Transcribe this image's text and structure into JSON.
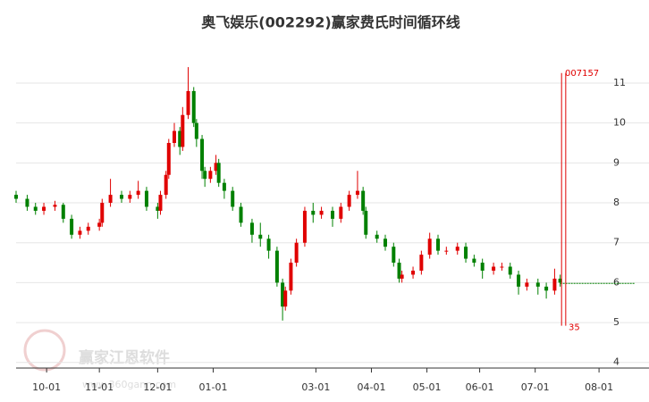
{
  "chart_data": {
    "type": "candlestick",
    "title": "奥飞娱乐(002292)赢家费氏时间循环线",
    "watermark": "赢家江恩软件",
    "watermark_url": "www.360gann.com",
    "up_color": "#e00000",
    "down_color": "#008000",
    "candles": [
      [
        0,
        8.2,
        8.1,
        8.3,
        8.0
      ],
      [
        4,
        8.1,
        7.9,
        8.2,
        7.8
      ],
      [
        7,
        7.9,
        7.8,
        8.0,
        7.7
      ],
      [
        10,
        7.8,
        7.9,
        8.0,
        7.7
      ],
      [
        14,
        7.9,
        7.95,
        8.05,
        7.8
      ],
      [
        17,
        7.95,
        7.6,
        8.0,
        7.5
      ],
      [
        20,
        7.6,
        7.2,
        7.7,
        7.1
      ],
      [
        23,
        7.2,
        7.3,
        7.4,
        7.1
      ],
      [
        26,
        7.3,
        7.4,
        7.5,
        7.2
      ],
      [
        30,
        7.4,
        7.5,
        7.6,
        7.3
      ],
      [
        31,
        7.5,
        8.0,
        8.1,
        7.4
      ],
      [
        34,
        8.0,
        8.2,
        8.6,
        7.9
      ],
      [
        38,
        8.2,
        8.1,
        8.3,
        8.0
      ],
      [
        41,
        8.1,
        8.2,
        8.3,
        8.0
      ],
      [
        44,
        8.2,
        8.3,
        8.55,
        8.1
      ],
      [
        47,
        8.3,
        7.9,
        8.4,
        7.8
      ],
      [
        51,
        7.9,
        7.8,
        8.0,
        7.6
      ],
      [
        52,
        7.8,
        8.2,
        8.3,
        7.7
      ],
      [
        54,
        8.2,
        8.7,
        8.8,
        8.1
      ],
      [
        55,
        8.7,
        9.5,
        9.6,
        8.6
      ],
      [
        57,
        9.5,
        9.8,
        10.0,
        9.4
      ],
      [
        59,
        9.8,
        9.4,
        9.9,
        9.2
      ],
      [
        60,
        9.4,
        10.2,
        10.4,
        9.3
      ],
      [
        62,
        10.2,
        10.8,
        11.4,
        10.1
      ],
      [
        64,
        10.8,
        10.0,
        10.9,
        9.9
      ],
      [
        65,
        10.0,
        9.6,
        10.1,
        9.4
      ],
      [
        67,
        9.6,
        8.8,
        9.7,
        8.6
      ],
      [
        68,
        8.8,
        8.6,
        8.9,
        8.4
      ],
      [
        70,
        8.6,
        8.8,
        8.9,
        8.5
      ],
      [
        72,
        8.8,
        9.0,
        9.2,
        8.7
      ],
      [
        73,
        9.0,
        8.5,
        9.1,
        8.4
      ],
      [
        75,
        8.5,
        8.3,
        8.6,
        8.1
      ],
      [
        78,
        8.3,
        7.9,
        8.4,
        7.8
      ],
      [
        81,
        7.9,
        7.5,
        8.0,
        7.4
      ],
      [
        85,
        7.5,
        7.2,
        7.6,
        7.0
      ],
      [
        88,
        7.2,
        7.1,
        7.5,
        6.9
      ],
      [
        91,
        7.1,
        6.8,
        7.2,
        6.6
      ],
      [
        94,
        6.8,
        6.0,
        6.9,
        5.9
      ],
      [
        96,
        6.0,
        5.4,
        6.1,
        5.05
      ],
      [
        97,
        5.4,
        5.8,
        5.9,
        5.3
      ],
      [
        99,
        5.8,
        6.5,
        6.6,
        5.7
      ],
      [
        101,
        6.5,
        7.0,
        7.1,
        6.4
      ],
      [
        104,
        7.0,
        7.8,
        7.9,
        6.9
      ],
      [
        107,
        7.8,
        7.7,
        8.0,
        7.5
      ],
      [
        110,
        7.7,
        7.8,
        7.9,
        7.6
      ],
      [
        114,
        7.8,
        7.6,
        7.9,
        7.4
      ],
      [
        117,
        7.6,
        7.9,
        8.0,
        7.5
      ],
      [
        120,
        7.9,
        8.2,
        8.3,
        7.8
      ],
      [
        123,
        8.2,
        8.3,
        8.8,
        8.1
      ],
      [
        125,
        8.3,
        7.8,
        8.4,
        7.7
      ],
      [
        126,
        7.8,
        7.2,
        7.9,
        7.1
      ],
      [
        130,
        7.2,
        7.1,
        7.3,
        7.0
      ],
      [
        133,
        7.1,
        6.9,
        7.2,
        6.8
      ],
      [
        136,
        6.9,
        6.5,
        7.0,
        6.4
      ],
      [
        138,
        6.5,
        6.1,
        6.6,
        6.0
      ],
      [
        139,
        6.1,
        6.2,
        6.3,
        6.0
      ],
      [
        143,
        6.2,
        6.3,
        6.4,
        6.1
      ],
      [
        146,
        6.3,
        6.7,
        6.8,
        6.2
      ],
      [
        149,
        6.7,
        7.1,
        7.25,
        6.6
      ],
      [
        152,
        7.1,
        6.8,
        7.2,
        6.7
      ],
      [
        155,
        6.8,
        6.8,
        6.9,
        6.7
      ],
      [
        159,
        6.8,
        6.9,
        7.0,
        6.7
      ],
      [
        162,
        6.9,
        6.6,
        7.0,
        6.5
      ],
      [
        165,
        6.6,
        6.5,
        6.7,
        6.4
      ],
      [
        168,
        6.5,
        6.3,
        6.6,
        6.1
      ],
      [
        172,
        6.3,
        6.4,
        6.5,
        6.2
      ],
      [
        175,
        6.4,
        6.4,
        6.5,
        6.3
      ],
      [
        178,
        6.4,
        6.2,
        6.5,
        6.1
      ],
      [
        181,
        6.2,
        5.9,
        6.3,
        5.7
      ],
      [
        184,
        5.9,
        6.0,
        6.1,
        5.8
      ],
      [
        188,
        6.0,
        5.9,
        6.1,
        5.7
      ],
      [
        191,
        5.9,
        5.8,
        6.0,
        5.6
      ],
      [
        194,
        5.8,
        6.1,
        6.35,
        5.7
      ],
      [
        196,
        6.1,
        6.0,
        6.2,
        5.9
      ]
    ],
    "projection": {
      "value": 5.98,
      "x": [
        196,
        223
      ],
      "color": "#008000"
    },
    "cycle_lines_x": [
      196.5,
      198
    ],
    "cycle_range": [
      4.92,
      11.25
    ],
    "cycle_color": "#e00000",
    "cycle_labels": [
      "007157",
      "35"
    ],
    "xlim": [
      0,
      228
    ],
    "xticks": [
      {
        "value": 11,
        "label": "10-01"
      },
      {
        "value": 30,
        "label": "11-01"
      },
      {
        "value": 51,
        "label": "12-01"
      },
      {
        "value": 71,
        "label": "01-01"
      },
      {
        "value": 108,
        "label": "03-01"
      },
      {
        "value": 128,
        "label": "04-01"
      },
      {
        "value": 148,
        "label": "05-01"
      },
      {
        "value": 167,
        "label": "06-01"
      },
      {
        "value": 187,
        "label": "07-01"
      },
      {
        "value": 210,
        "label": "08-01"
      }
    ],
    "ylim": [
      3.86,
      11.85
    ],
    "yticks": [
      4,
      5,
      6,
      7,
      8,
      9,
      10,
      11
    ],
    "grid": true
  }
}
